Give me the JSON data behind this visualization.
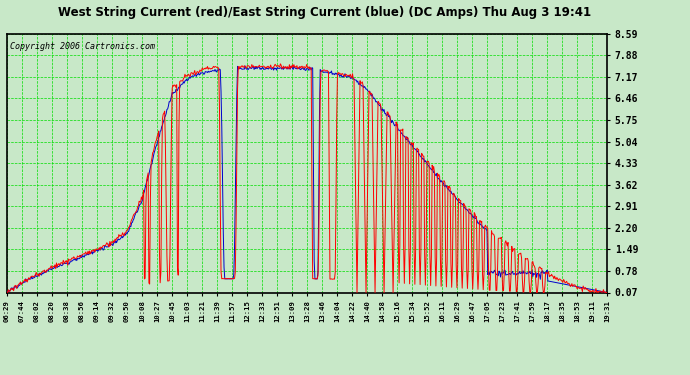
{
  "title": "West String Current (red)/East String Current (blue) (DC Amps) Thu Aug 3 19:41",
  "copyright": "Copyright 2006 Cartronics.com",
  "background_color": "#c8e8c8",
  "plot_bg_color": "#c8e8c8",
  "grid_color": "#00dd00",
  "title_color": "#000000",
  "red_color": "#ff0000",
  "blue_color": "#0000cc",
  "yticks": [
    0.07,
    0.78,
    1.49,
    2.2,
    2.91,
    3.62,
    4.33,
    5.04,
    5.75,
    6.46,
    7.17,
    7.88,
    8.59
  ],
  "ylim": [
    0.07,
    8.59
  ],
  "xtick_labels": [
    "06:29",
    "07:44",
    "08:02",
    "08:20",
    "08:38",
    "08:56",
    "09:14",
    "09:32",
    "09:50",
    "10:08",
    "10:27",
    "10:45",
    "11:03",
    "11:21",
    "11:39",
    "11:57",
    "12:15",
    "12:33",
    "12:51",
    "13:09",
    "13:28",
    "13:46",
    "14:04",
    "14:22",
    "14:40",
    "14:58",
    "15:16",
    "15:34",
    "15:52",
    "16:11",
    "16:29",
    "16:47",
    "17:05",
    "17:23",
    "17:41",
    "17:59",
    "18:17",
    "18:35",
    "18:53",
    "19:11",
    "19:31"
  ],
  "figsize": [
    6.9,
    3.75
  ],
  "dpi": 100
}
